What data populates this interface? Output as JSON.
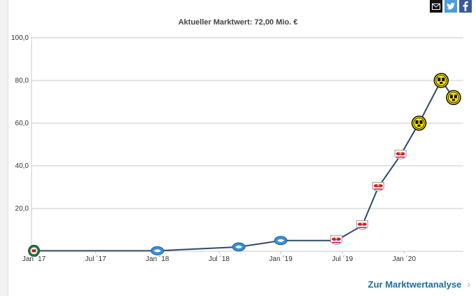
{
  "share": {
    "icons": [
      "email-icon",
      "twitter-icon",
      "facebook-icon"
    ]
  },
  "footer": {
    "link_label": "Zur Marktwertanalyse"
  },
  "colors": {
    "line": "#2e4a6b",
    "grid": "#c8c8c8",
    "bvb": "#f7e100",
    "salzburg": "#d4143c",
    "molde": "#3a8fd6",
    "lyn": "#1e7a3a"
  },
  "chart_data": {
    "type": "line",
    "title": "Aktueller Marktwert: 72,00 Mio. €",
    "xlabel": "",
    "ylabel": "",
    "ylim": [
      0,
      100
    ],
    "xlim": [
      2016.98,
      2020.48
    ],
    "yticks": [
      {
        "value": 100,
        "label": "100,0"
      },
      {
        "value": 80,
        "label": "80,0"
      },
      {
        "value": 60,
        "label": "60,0"
      },
      {
        "value": 40,
        "label": "40,0"
      },
      {
        "value": 20,
        "label": "20,0"
      }
    ],
    "xticks": [
      {
        "value": 2017.0,
        "label": "Jan ´17"
      },
      {
        "value": 2017.5,
        "label": "Jul ´17"
      },
      {
        "value": 2018.0,
        "label": "Jan ´18"
      },
      {
        "value": 2018.5,
        "label": "Jul ´18"
      },
      {
        "value": 2019.0,
        "label": "Jan ´19"
      },
      {
        "value": 2019.5,
        "label": "Jul ´19"
      },
      {
        "value": 2020.0,
        "label": "Jan ´20"
      }
    ],
    "series": [
      {
        "name": "Marktwert",
        "points": [
          {
            "x": 2017.0,
            "y": 0.2,
            "club": "lyn"
          },
          {
            "x": 2018.0,
            "y": 0.2,
            "club": "molde"
          },
          {
            "x": 2018.66,
            "y": 2.0,
            "club": "molde"
          },
          {
            "x": 2019.0,
            "y": 5.0,
            "club": "molde"
          },
          {
            "x": 2019.45,
            "y": 5.0,
            "club": "salzburg"
          },
          {
            "x": 2019.66,
            "y": 12.0,
            "club": "salzburg"
          },
          {
            "x": 2019.79,
            "y": 30.0,
            "club": "salzburg"
          },
          {
            "x": 2019.97,
            "y": 45.0,
            "club": "salzburg"
          },
          {
            "x": 2020.12,
            "y": 60.0,
            "club": "bvb"
          },
          {
            "x": 2020.3,
            "y": 80.0,
            "club": "bvb"
          },
          {
            "x": 2020.4,
            "y": 72.0,
            "club": "bvb"
          }
        ]
      }
    ]
  }
}
